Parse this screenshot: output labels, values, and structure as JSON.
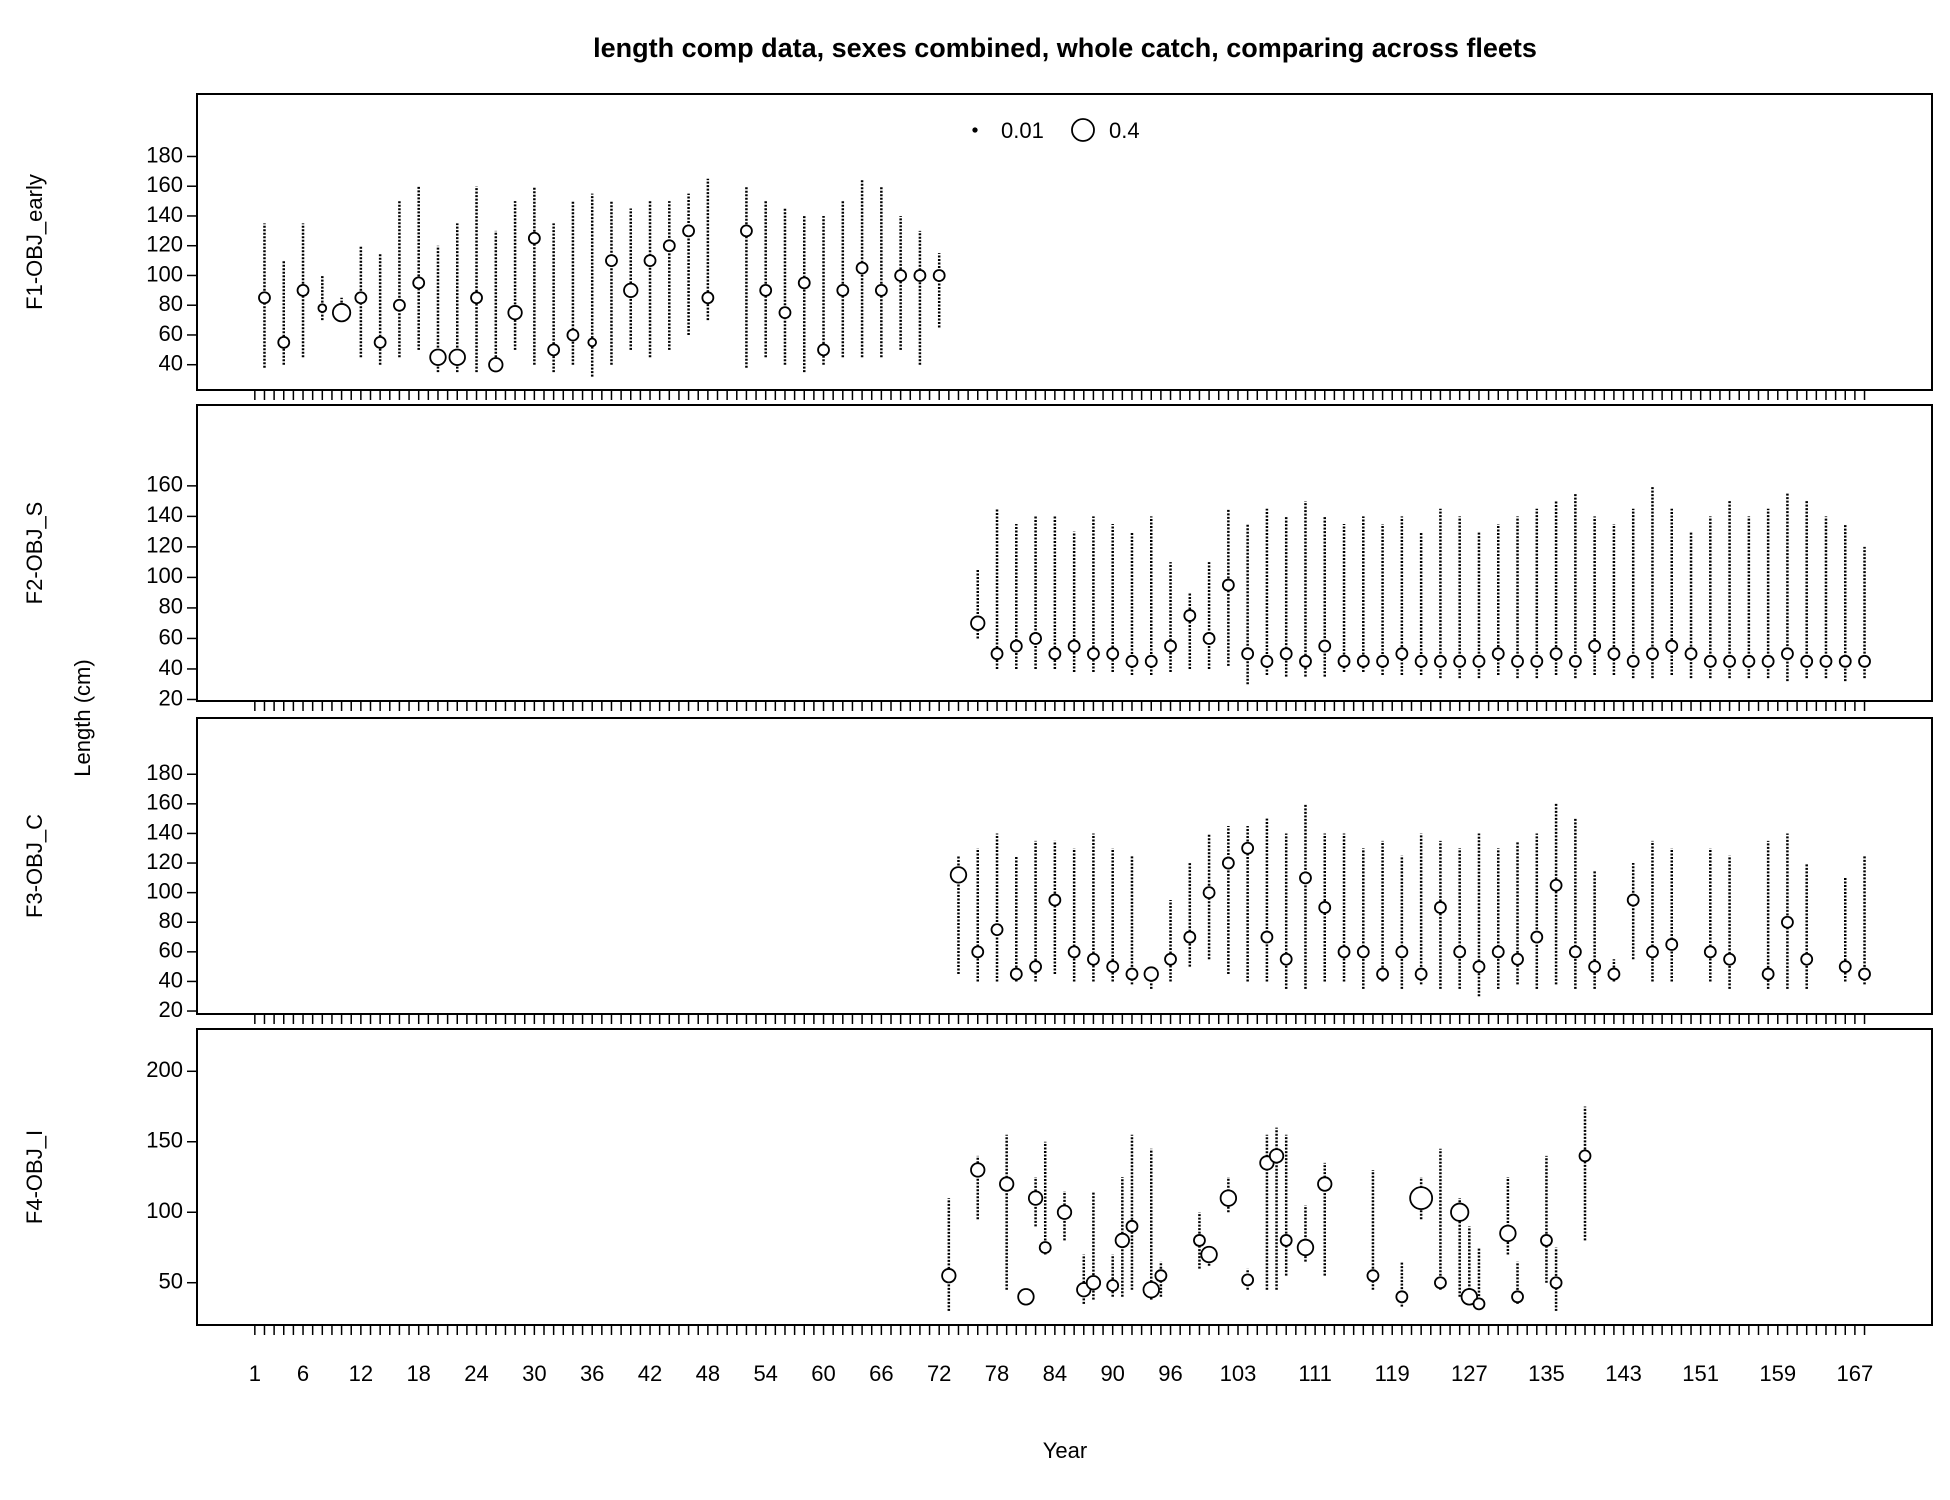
{
  "chart_data": {
    "type": "bubble",
    "title": "length comp data, sexes combined, whole catch, comparing across fleets",
    "xlabel": "Year",
    "ylabel": "Length (cm)",
    "xlim": [
      -5,
      175
    ],
    "xticks": [
      1,
      6,
      12,
      18,
      24,
      30,
      36,
      42,
      48,
      54,
      60,
      66,
      72,
      78,
      84,
      90,
      96,
      103,
      111,
      119,
      127,
      135,
      143,
      151,
      159,
      167
    ],
    "xminor": [
      1,
      2,
      3,
      4,
      5,
      6,
      7,
      8,
      9,
      10,
      11,
      12,
      13,
      14,
      15,
      16,
      17,
      18,
      19,
      20,
      21,
      22,
      23,
      24,
      25,
      26,
      27,
      28,
      29,
      30,
      31,
      32,
      33,
      34,
      35,
      36,
      37,
      38,
      39,
      40,
      41,
      42,
      43,
      44,
      45,
      46,
      47,
      48,
      49,
      50,
      51,
      52,
      53,
      54,
      55,
      56,
      57,
      58,
      59,
      60,
      61,
      62,
      63,
      64,
      65,
      66,
      67,
      68,
      69,
      70,
      71,
      72,
      73,
      74,
      75,
      76,
      77,
      78,
      79,
      80,
      81,
      82,
      83,
      84,
      85,
      86,
      87,
      88,
      89,
      90,
      91,
      92,
      93,
      94,
      95,
      96,
      97,
      98,
      99,
      100,
      101,
      102,
      103,
      104,
      105,
      106,
      107,
      108,
      109,
      110,
      111,
      112,
      113,
      114,
      115,
      116,
      117,
      118,
      119,
      120,
      121,
      122,
      123,
      124,
      125,
      126,
      127,
      128,
      129,
      130,
      131,
      132,
      133,
      134,
      135,
      136,
      137,
      138,
      139,
      140,
      141,
      142,
      143,
      144,
      145,
      146,
      147,
      148,
      149,
      150,
      151,
      152,
      153,
      154,
      155,
      156,
      157,
      158,
      159,
      160,
      161,
      162,
      163,
      164,
      165,
      166,
      167,
      168
    ],
    "legend_sizes": [
      0.01,
      0.4
    ],
    "panels": [
      {
        "label": "F1-OBJ_early",
        "ylim": [
          23,
          222
        ],
        "yticks": [
          40,
          60,
          80,
          100,
          120,
          140,
          160,
          180
        ],
        "x": [
          2,
          4,
          6,
          8,
          10,
          12,
          14,
          16,
          18,
          20,
          22,
          24,
          26,
          28,
          30,
          32,
          34,
          36,
          38,
          40,
          42,
          44,
          46,
          48,
          52,
          54,
          56,
          58,
          60,
          62,
          64,
          66,
          68,
          70,
          72
        ],
        "low": [
          38,
          40,
          45,
          70,
          70,
          45,
          40,
          45,
          50,
          35,
          35,
          35,
          38,
          50,
          40,
          35,
          40,
          32,
          40,
          50,
          45,
          50,
          60,
          70,
          38,
          45,
          40,
          35,
          40,
          45,
          45,
          45,
          50,
          40,
          65
        ],
        "high": [
          135,
          110,
          135,
          100,
          85,
          120,
          115,
          150,
          160,
          120,
          135,
          160,
          130,
          150,
          160,
          135,
          150,
          155,
          150,
          145,
          150,
          150,
          155,
          165,
          160,
          150,
          145,
          140,
          140,
          150,
          165,
          160,
          140,
          130,
          115
        ],
        "mode": [
          85,
          55,
          90,
          78,
          75,
          85,
          55,
          80,
          95,
          45,
          45,
          85,
          40,
          75,
          125,
          50,
          60,
          55,
          110,
          90,
          110,
          120,
          130,
          85,
          130,
          90,
          75,
          95,
          50,
          90,
          105,
          90,
          100,
          100,
          100
        ],
        "size": [
          0.1,
          0.1,
          0.1,
          0.05,
          0.25,
          0.1,
          0.1,
          0.1,
          0.1,
          0.2,
          0.2,
          0.1,
          0.15,
          0.15,
          0.1,
          0.1,
          0.1,
          0.05,
          0.1,
          0.15,
          0.1,
          0.1,
          0.1,
          0.1,
          0.1,
          0.1,
          0.1,
          0.1,
          0.1,
          0.1,
          0.1,
          0.1,
          0.1,
          0.1,
          0.1
        ]
      },
      {
        "label": "F2-OBJ_S",
        "ylim": [
          19,
          213
        ],
        "yticks": [
          20,
          40,
          60,
          80,
          100,
          120,
          140,
          160
        ],
        "x": [
          76,
          78,
          80,
          82,
          84,
          86,
          88,
          90,
          92,
          94,
          96,
          98,
          100,
          102,
          104,
          106,
          108,
          110,
          112,
          114,
          116,
          118,
          120,
          122,
          124,
          126,
          128,
          130,
          132,
          134,
          136,
          138,
          140,
          142,
          144,
          146,
          148,
          150,
          152,
          154,
          156,
          158,
          160,
          162,
          164,
          166,
          168
        ],
        "low": [
          60,
          40,
          40,
          40,
          40,
          38,
          38,
          38,
          36,
          36,
          38,
          40,
          40,
          42,
          30,
          36,
          35,
          35,
          35,
          38,
          38,
          36,
          36,
          36,
          34,
          34,
          34,
          36,
          34,
          34,
          36,
          34,
          36,
          36,
          34,
          34,
          36,
          34,
          34,
          34,
          34,
          34,
          32,
          34,
          34,
          32,
          34
        ],
        "high": [
          105,
          145,
          135,
          140,
          140,
          130,
          140,
          135,
          130,
          140,
          110,
          90,
          110,
          145,
          135,
          145,
          140,
          150,
          140,
          135,
          140,
          135,
          140,
          130,
          145,
          140,
          130,
          135,
          140,
          145,
          150,
          155,
          140,
          135,
          145,
          160,
          145,
          130,
          140,
          150,
          140,
          145,
          155,
          150,
          140,
          135,
          120
        ],
        "mode": [
          70,
          50,
          55,
          60,
          50,
          55,
          50,
          50,
          45,
          45,
          55,
          75,
          60,
          95,
          50,
          45,
          50,
          45,
          55,
          45,
          45,
          45,
          50,
          45,
          45,
          45,
          45,
          50,
          45,
          45,
          50,
          45,
          55,
          50,
          45,
          50,
          55,
          50,
          45,
          45,
          45,
          45,
          50,
          45,
          45,
          45,
          45
        ],
        "size": [
          0.15,
          0.1,
          0.1,
          0.1,
          0.1,
          0.1,
          0.1,
          0.1,
          0.1,
          0.1,
          0.1,
          0.1,
          0.1,
          0.1,
          0.1,
          0.1,
          0.1,
          0.1,
          0.1,
          0.1,
          0.1,
          0.1,
          0.1,
          0.1,
          0.1,
          0.1,
          0.1,
          0.1,
          0.1,
          0.1,
          0.1,
          0.1,
          0.1,
          0.1,
          0.1,
          0.1,
          0.1,
          0.1,
          0.1,
          0.1,
          0.1,
          0.1,
          0.1,
          0.1,
          0.1,
          0.1,
          0.1
        ]
      },
      {
        "label": "F3-OBJ_C",
        "ylim": [
          18,
          218
        ],
        "yticks": [
          20,
          40,
          60,
          80,
          100,
          120,
          140,
          160,
          180
        ],
        "x": [
          74,
          76,
          78,
          80,
          82,
          84,
          86,
          88,
          90,
          92,
          94,
          96,
          98,
          100,
          102,
          104,
          106,
          108,
          110,
          112,
          114,
          116,
          118,
          120,
          122,
          124,
          126,
          128,
          130,
          132,
          134,
          136,
          138,
          140,
          142,
          144,
          146,
          148,
          152,
          154,
          158,
          160,
          162,
          166,
          168
        ],
        "low": [
          45,
          40,
          40,
          40,
          40,
          45,
          40,
          40,
          40,
          38,
          35,
          40,
          50,
          55,
          45,
          40,
          40,
          35,
          35,
          40,
          40,
          35,
          40,
          35,
          38,
          35,
          35,
          30,
          35,
          38,
          35,
          38,
          35,
          35,
          40,
          55,
          40,
          40,
          40,
          35,
          35,
          35,
          35,
          40,
          38
        ],
        "high": [
          125,
          130,
          140,
          125,
          135,
          135,
          130,
          140,
          130,
          125,
          50,
          95,
          120,
          140,
          145,
          145,
          150,
          140,
          160,
          140,
          140,
          130,
          135,
          125,
          140,
          135,
          130,
          140,
          130,
          135,
          140,
          160,
          150,
          115,
          55,
          120,
          135,
          130,
          130,
          125,
          135,
          140,
          120,
          110,
          125
        ],
        "mode": [
          112,
          60,
          75,
          45,
          50,
          95,
          60,
          55,
          50,
          45,
          45,
          55,
          70,
          100,
          120,
          130,
          70,
          55,
          110,
          90,
          60,
          60,
          45,
          60,
          45,
          90,
          60,
          50,
          60,
          55,
          70,
          105,
          60,
          50,
          45,
          95,
          60,
          65,
          60,
          55,
          45,
          80,
          55,
          50,
          45
        ],
        "size": [
          0.2,
          0.1,
          0.1,
          0.1,
          0.1,
          0.1,
          0.1,
          0.1,
          0.1,
          0.1,
          0.15,
          0.1,
          0.1,
          0.1,
          0.1,
          0.1,
          0.1,
          0.1,
          0.1,
          0.1,
          0.1,
          0.1,
          0.1,
          0.1,
          0.1,
          0.1,
          0.1,
          0.1,
          0.1,
          0.1,
          0.1,
          0.1,
          0.1,
          0.1,
          0.1,
          0.1,
          0.1,
          0.1,
          0.1,
          0.1,
          0.1,
          0.1,
          0.1,
          0.1,
          0.1
        ]
      },
      {
        "label": "F4-OBJ_I",
        "ylim": [
          20,
          230
        ],
        "yticks": [
          50,
          100,
          150,
          200
        ],
        "x": [
          73,
          76,
          79,
          81,
          82,
          83,
          85,
          87,
          88,
          90,
          91,
          92,
          94,
          95,
          99,
          100,
          102,
          104,
          106,
          107,
          108,
          110,
          112,
          117,
          120,
          122,
          124,
          126,
          127,
          128,
          131,
          132,
          135,
          136,
          139
        ],
        "low": [
          30,
          95,
          45,
          35,
          90,
          70,
          80,
          35,
          38,
          40,
          40,
          45,
          38,
          40,
          60,
          62,
          100,
          45,
          45,
          45,
          55,
          65,
          55,
          45,
          33,
          95,
          45,
          40,
          35,
          33,
          70,
          35,
          50,
          30,
          80
        ],
        "high": [
          110,
          140,
          155,
          45,
          125,
          150,
          115,
          70,
          115,
          70,
          125,
          155,
          145,
          65,
          100,
          75,
          125,
          60,
          155,
          160,
          155,
          105,
          135,
          130,
          65,
          125,
          145,
          110,
          90,
          75,
          125,
          65,
          140,
          75,
          175
        ],
        "mode": [
          55,
          130,
          120,
          40,
          110,
          75,
          100,
          45,
          50,
          48,
          80,
          90,
          45,
          55,
          80,
          70,
          110,
          52,
          135,
          140,
          80,
          75,
          120,
          55,
          40,
          110,
          50,
          100,
          40,
          35,
          85,
          40,
          80,
          50,
          140
        ],
        "size": [
          0.15,
          0.15,
          0.15,
          0.2,
          0.15,
          0.1,
          0.15,
          0.15,
          0.15,
          0.1,
          0.15,
          0.1,
          0.2,
          0.1,
          0.1,
          0.2,
          0.2,
          0.1,
          0.15,
          0.15,
          0.1,
          0.2,
          0.15,
          0.1,
          0.1,
          0.4,
          0.1,
          0.25,
          0.2,
          0.1,
          0.2,
          0.1,
          0.1,
          0.1,
          0.1
        ]
      }
    ]
  }
}
